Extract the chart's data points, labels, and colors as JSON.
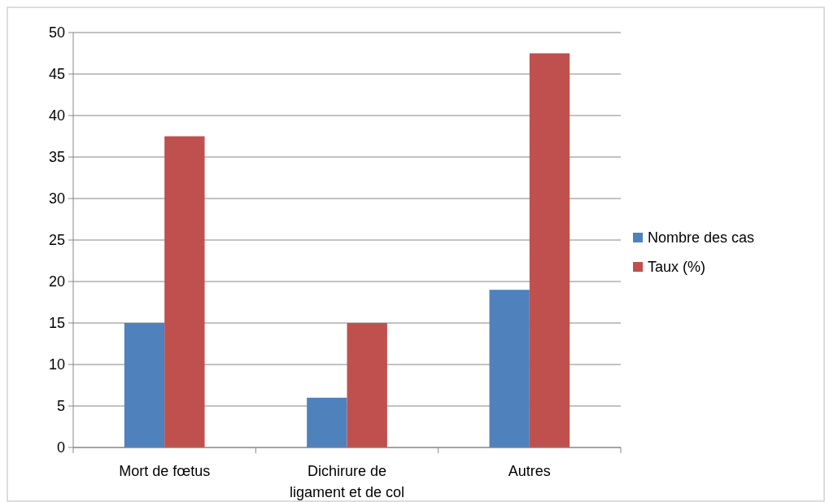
{
  "chart_data": {
    "type": "bar",
    "categories": [
      "Mort de fœtus",
      "Dichirure de ligament et de col",
      "Autres"
    ],
    "series": [
      {
        "name": "Nombre des cas",
        "color": "#4f81bd",
        "values": [
          15,
          6,
          19
        ]
      },
      {
        "name": "Taux (%)",
        "color": "#c0504d",
        "values": [
          37.5,
          15,
          47.5
        ]
      }
    ],
    "ylim": [
      0,
      50
    ],
    "yticks": [
      0,
      5,
      10,
      15,
      20,
      25,
      30,
      35,
      40,
      45,
      50
    ],
    "grid": "y",
    "legend": "right"
  }
}
